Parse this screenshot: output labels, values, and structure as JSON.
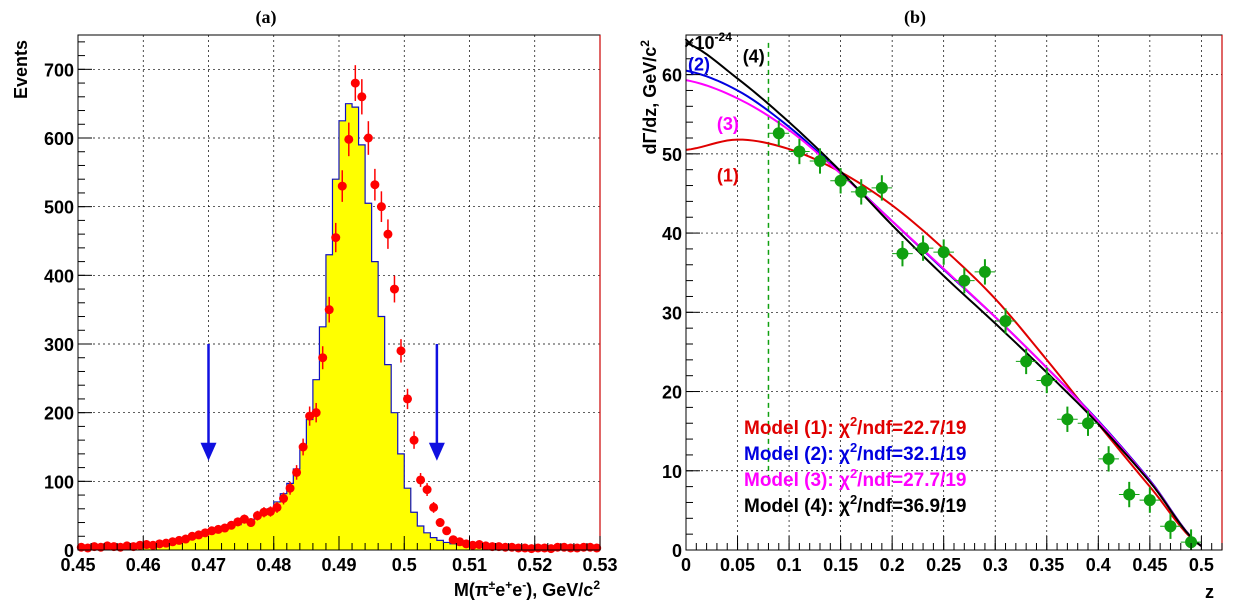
{
  "panels": [
    {
      "label": "(a)",
      "chart_data": {
        "type": "bar",
        "title": "",
        "xlabel": "M(π±e+e-), GeV/c2",
        "ylabel": "Events",
        "xlim": [
          0.45,
          0.53
        ],
        "ylim": [
          0,
          750
        ],
        "grid": true,
        "x_ticks": [
          "0.45",
          "0.46",
          "0.47",
          "0.48",
          "0.49",
          "0.5",
          "0.51",
          "0.52",
          "0.53"
        ],
        "y_ticks": [
          "0",
          "100",
          "200",
          "300",
          "400",
          "500",
          "600",
          "700"
        ],
        "bin_width": 0.001,
        "x": [
          0.4505,
          0.4515,
          0.4525,
          0.4535,
          0.4545,
          0.4555,
          0.4565,
          0.4575,
          0.4585,
          0.4595,
          0.4605,
          0.4615,
          0.4625,
          0.4635,
          0.4645,
          0.4655,
          0.4665,
          0.4675,
          0.4685,
          0.4695,
          0.4705,
          0.4715,
          0.4725,
          0.4735,
          0.4745,
          0.4755,
          0.4765,
          0.4775,
          0.4785,
          0.4795,
          0.4805,
          0.4815,
          0.4825,
          0.4835,
          0.4845,
          0.4855,
          0.4865,
          0.4875,
          0.4885,
          0.4895,
          0.4905,
          0.4915,
          0.4925,
          0.4935,
          0.4945,
          0.4955,
          0.4965,
          0.4975,
          0.4985,
          0.4995,
          0.5005,
          0.5015,
          0.5025,
          0.5035,
          0.5045,
          0.5055,
          0.5065,
          0.5075,
          0.5085,
          0.5095,
          0.5105,
          0.5115,
          0.5125,
          0.5135,
          0.5145,
          0.5155,
          0.5165,
          0.5175,
          0.5185,
          0.5195,
          0.5205,
          0.5215,
          0.5225,
          0.5235,
          0.5245,
          0.5255,
          0.5265,
          0.5275,
          0.5285,
          0.5295
        ],
        "series": [
          {
            "values_histogram": [
              3,
              3,
              4,
              3,
              4,
              5,
              4,
              5,
              6,
              7,
              8,
              8,
              9,
              10,
              12,
              14,
              15,
              18,
              20,
              23,
              25,
              28,
              31,
              34,
              37,
              40,
              44,
              48,
              53,
              60,
              70,
              82,
              97,
              118,
              148,
              190,
              248,
              325,
              430,
              540,
              625,
              650,
              645,
              590,
              505,
              420,
              340,
              270,
              200,
              140,
              90,
              55,
              35,
              25,
              18,
              14,
              11,
              9,
              8,
              7,
              6,
              5,
              5,
              4,
              4,
              3,
              3,
              3,
              3,
              2,
              2,
              2,
              2,
              2,
              2,
              2,
              2,
              2,
              2,
              2
            ],
            "values_points": [
              4,
              3,
              5,
              4,
              6,
              5,
              4,
              6,
              5,
              7,
              8,
              7,
              9,
              10,
              12,
              14,
              16,
              20,
              22,
              25,
              28,
              30,
              32,
              36,
              41,
              45,
              40,
              50,
              55,
              56,
              62,
              75,
              90,
              113,
              150,
              195,
              200,
              280,
              350,
              455,
              530,
              598,
              680,
              660,
              600,
              532,
              500,
              460,
              380,
              290,
              220,
              160,
              102,
              88,
              62,
              40,
              28,
              15,
              12,
              9,
              7,
              8,
              6,
              5,
              5,
              4,
              4,
              3,
              3,
              2,
              3,
              3,
              2,
              4,
              4,
              3,
              3,
              4,
              4,
              3
            ]
          }
        ],
        "annotations": [
          {
            "type": "arrow",
            "x": 0.47,
            "direction": "down",
            "from_y": 300,
            "to_y": 130,
            "color": "#1010e0"
          },
          {
            "type": "arrow",
            "x": 0.505,
            "direction": "down",
            "from_y": 300,
            "to_y": 130,
            "color": "#1010e0"
          }
        ],
        "colors": {
          "fill": "#ffff00",
          "outline": "#1010c0",
          "points": "#ff0000"
        }
      }
    },
    {
      "label": "(b)",
      "chart_data": {
        "type": "scatter",
        "title": "",
        "xlabel": "z",
        "ylabel": "dΓ/dz, GeV/c2",
        "y_multiplier": "×10-24",
        "xlim": [
          0,
          0.52
        ],
        "ylim": [
          0,
          65
        ],
        "grid": true,
        "x_ticks": [
          "0",
          "0.05",
          "0.1",
          "0.15",
          "0.2",
          "0.25",
          "0.3",
          "0.35",
          "0.4",
          "0.45",
          "0.5"
        ],
        "y_ticks": [
          "0",
          "10",
          "20",
          "30",
          "40",
          "50",
          "60"
        ],
        "cut_line_x": 0.08,
        "x": [
          0.09,
          0.11,
          0.13,
          0.15,
          0.17,
          0.19,
          0.21,
          0.23,
          0.25,
          0.27,
          0.29,
          0.31,
          0.33,
          0.35,
          0.37,
          0.39,
          0.41,
          0.43,
          0.45,
          0.47,
          0.49
        ],
        "y": [
          52.6,
          50.3,
          49.1,
          46.6,
          45.2,
          45.7,
          37.4,
          38.1,
          37.6,
          34.0,
          35.1,
          28.9,
          23.8,
          21.4,
          16.5,
          16.0,
          11.5,
          7.0,
          6.3,
          3.0,
          1.0
        ],
        "series": [
          {
            "name": "(1)",
            "color": "#e00000",
            "x": [
              0,
              0.05,
              0.1,
              0.15,
              0.2,
              0.25,
              0.3,
              0.35,
              0.4,
              0.45,
              0.5
            ],
            "y": [
              50.5,
              51.8,
              50.6,
              47.7,
              43.5,
              38.0,
              31.7,
              24.0,
              15.9,
              8.0,
              0.5
            ]
          },
          {
            "name": "(2)",
            "color": "#0000e0",
            "x": [
              0,
              0.05,
              0.1,
              0.15,
              0.2,
              0.25,
              0.3,
              0.35,
              0.4,
              0.45,
              0.5
            ],
            "y": [
              60.5,
              58.0,
              53.4,
              47.6,
              41.5,
              35.4,
              29.4,
              23.0,
              16.3,
              8.8,
              0.5
            ]
          },
          {
            "name": "(3)",
            "color": "#ff00ff",
            "x": [
              0,
              0.05,
              0.1,
              0.15,
              0.2,
              0.25,
              0.3,
              0.35,
              0.4,
              0.45,
              0.5
            ],
            "y": [
              59.3,
              57.0,
              53.0,
              47.5,
              41.5,
              35.5,
              29.4,
              23.0,
              16.2,
              8.7,
              0.5
            ]
          },
          {
            "name": "(4)",
            "color": "#000000",
            "x": [
              0,
              0.05,
              0.1,
              0.15,
              0.2,
              0.25,
              0.3,
              0.35,
              0.4,
              0.45,
              0.5
            ],
            "y": [
              64.0,
              59.5,
              54.0,
              47.8,
              41.0,
              34.6,
              28.6,
              22.4,
              15.9,
              8.6,
              0.5
            ]
          }
        ],
        "curve_labels": [
          {
            "text": "(1)",
            "color": "#e00000",
            "x": 0.03,
            "y": 46.5
          },
          {
            "text": "(2)",
            "color": "#0000e0",
            "x": 0.002,
            "y": 60.5
          },
          {
            "text": "(3)",
            "color": "#ff00ff",
            "x": 0.03,
            "y": 53.0
          },
          {
            "text": "(4)",
            "color": "#000000",
            "x": 0.055,
            "y": 61.5
          }
        ],
        "legend": [
          {
            "text": "Model (1): χ2/ndf=22.7/19",
            "color": "#e00000"
          },
          {
            "text": "Model (2): χ2/ndf=32.1/19",
            "color": "#0000e0"
          },
          {
            "text": "Model (3): χ2/ndf=27.7/19",
            "color": "#ff00ff"
          },
          {
            "text": "Model (4): χ2/ndf=36.9/19",
            "color": "#000000"
          }
        ],
        "legend_placement": "bottom-center",
        "colors": {
          "points": "#10a010",
          "cut_line": "#10a010"
        }
      }
    }
  ]
}
